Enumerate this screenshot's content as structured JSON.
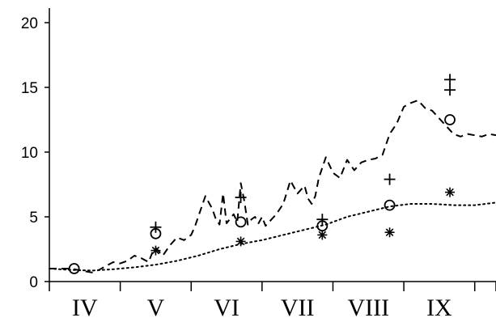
{
  "chart_data": {
    "type": "line",
    "title": "",
    "xlabel": "",
    "ylabel": "",
    "ylim": [
      0,
      20
    ],
    "yticks": [
      0,
      5,
      10,
      15,
      20
    ],
    "ytick_labels": [
      "0",
      "5",
      "10",
      "15",
      "20"
    ],
    "xlim": [
      3.7,
      10.0
    ],
    "xtick_boundaries": [
      3.7,
      4.7,
      5.7,
      6.7,
      7.7,
      8.7,
      9.7,
      10.0
    ],
    "month_labels": [
      {
        "label": "IV",
        "x": 4.2
      },
      {
        "label": "V",
        "x": 5.2
      },
      {
        "label": "VI",
        "x": 6.2
      },
      {
        "label": "VII",
        "x": 7.2
      },
      {
        "label": "VIII",
        "x": 8.2
      },
      {
        "label": "IX",
        "x": 9.2
      }
    ],
    "grid": false,
    "series": [
      {
        "style": "dashed",
        "color": "#000000",
        "x": [
          3.7,
          3.85,
          4.0,
          4.1,
          4.2,
          4.3,
          4.4,
          4.5,
          4.6,
          4.7,
          4.8,
          4.9,
          5.0,
          5.1,
          5.15,
          5.2,
          5.3,
          5.4,
          5.5,
          5.6,
          5.7,
          5.75,
          5.8,
          5.9,
          6.0,
          6.05,
          6.1,
          6.15,
          6.2,
          6.3,
          6.35,
          6.4,
          6.45,
          6.5,
          6.55,
          6.6,
          6.65,
          6.7,
          6.75,
          6.8,
          6.9,
          7.0,
          7.1,
          7.2,
          7.3,
          7.35,
          7.4,
          7.45,
          7.5,
          7.6,
          7.7,
          7.8,
          7.9,
          8.0,
          8.1,
          8.2,
          8.3,
          8.4,
          8.5,
          8.6,
          8.7,
          8.8,
          8.9,
          9.0,
          9.1,
          9.2,
          9.3,
          9.4,
          9.5,
          9.6,
          9.7,
          9.8,
          9.9,
          10.0
        ],
        "y": [
          1.0,
          1.0,
          1.0,
          0.9,
          0.8,
          0.7,
          0.9,
          1.2,
          1.5,
          1.4,
          1.6,
          2.0,
          1.8,
          1.5,
          2.2,
          2.6,
          2.0,
          2.8,
          3.4,
          3.2,
          3.6,
          4.2,
          5.0,
          6.6,
          5.6,
          4.8,
          4.4,
          6.8,
          4.5,
          5.2,
          4.6,
          7.6,
          6.2,
          4.4,
          4.8,
          5.0,
          4.5,
          5.0,
          4.3,
          4.6,
          5.2,
          6.0,
          7.8,
          6.8,
          7.4,
          6.4,
          6.0,
          6.6,
          8.0,
          9.6,
          8.4,
          8.0,
          9.4,
          8.6,
          9.2,
          9.4,
          9.5,
          9.8,
          11.4,
          12.2,
          13.5,
          13.8,
          14.0,
          13.4,
          13.2,
          12.6,
          12.0,
          11.4,
          11.2,
          11.4,
          11.3,
          11.2,
          11.4,
          11.3
        ]
      },
      {
        "style": "dotted",
        "color": "#000000",
        "x": [
          3.7,
          4.0,
          4.3,
          4.6,
          4.9,
          5.2,
          5.5,
          5.8,
          6.1,
          6.4,
          6.7,
          7.0,
          7.3,
          7.6,
          7.9,
          8.2,
          8.5,
          8.8,
          9.1,
          9.4,
          9.7,
          10.0
        ],
        "y": [
          1.0,
          0.9,
          0.85,
          0.95,
          1.1,
          1.3,
          1.6,
          2.0,
          2.5,
          2.9,
          3.2,
          3.6,
          4.0,
          4.4,
          5.0,
          5.4,
          5.8,
          6.0,
          6.0,
          5.9,
          5.9,
          6.1
        ]
      }
    ],
    "markers": {
      "plus": [
        {
          "x": 5.2,
          "y": 4.2
        },
        {
          "x": 6.4,
          "y": 6.5
        },
        {
          "x": 7.55,
          "y": 4.8
        },
        {
          "x": 8.5,
          "y": 7.9
        },
        {
          "x": 9.35,
          "y": 15.6
        },
        {
          "x": 9.35,
          "y": 14.8
        }
      ],
      "circle": [
        {
          "x": 4.05,
          "y": 1.0
        },
        {
          "x": 5.2,
          "y": 3.7
        },
        {
          "x": 6.4,
          "y": 4.6
        },
        {
          "x": 7.55,
          "y": 4.3
        },
        {
          "x": 8.5,
          "y": 5.9
        },
        {
          "x": 9.35,
          "y": 12.5
        }
      ],
      "asterisk": [
        {
          "x": 5.2,
          "y": 2.4
        },
        {
          "x": 6.4,
          "y": 3.1
        },
        {
          "x": 7.55,
          "y": 3.6
        },
        {
          "x": 8.5,
          "y": 3.8
        },
        {
          "x": 9.35,
          "y": 6.9
        }
      ]
    }
  }
}
